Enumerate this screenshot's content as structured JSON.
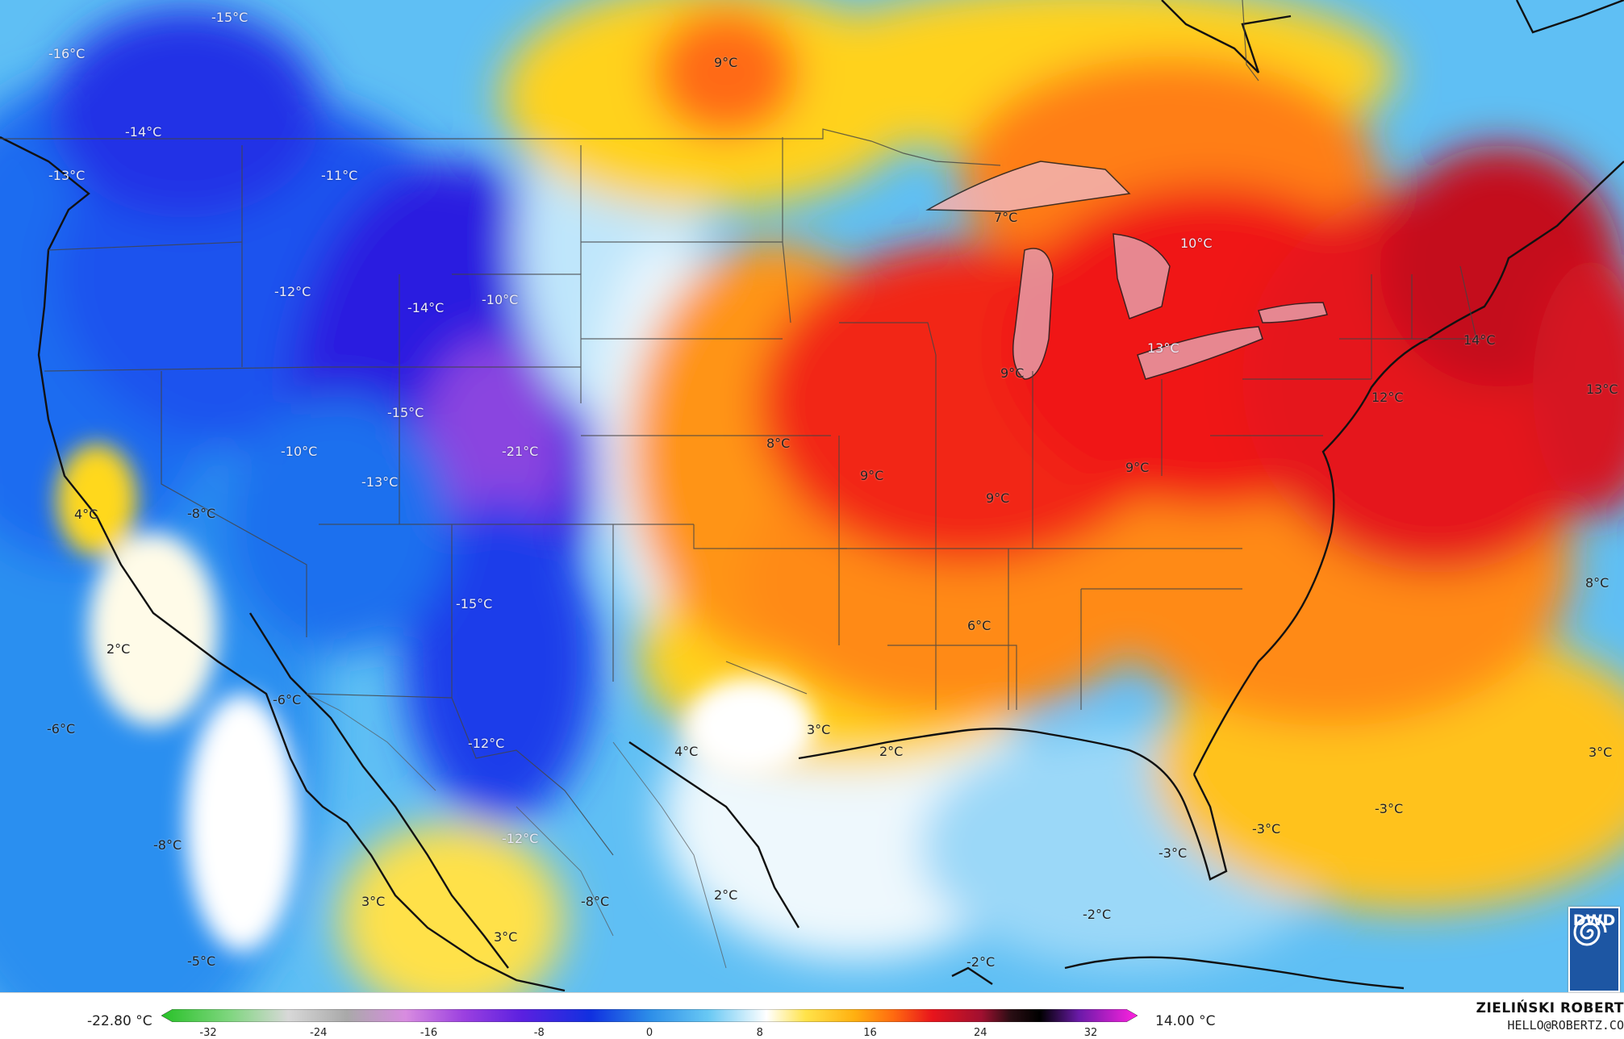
{
  "map": {
    "region": "Contiguous United States, northern Mexico, southern Canada",
    "colors": {
      "ocean_base": "#5fbff4",
      "freezing": "#ffffff",
      "warm_yellow": "#ffd21a",
      "warm_orange": "#ff8c1a",
      "hot_red": "#f01818",
      "very_hot": "#b0101e",
      "cold_blue": "#1660f0",
      "very_cold": "#3a10d8",
      "extreme_cold": "#7a38dd",
      "land_borders": "#111111",
      "lakes": "#e69ba6"
    },
    "city_labels": [
      {
        "id": "seattle-north",
        "text": "-15°C"
      },
      {
        "id": "vancouver",
        "text": "-16°C"
      },
      {
        "id": "seattle",
        "text": "-14°C"
      },
      {
        "id": "olympia",
        "text": "-13°C"
      },
      {
        "id": "montana-west",
        "text": "-11°C"
      },
      {
        "id": "regina",
        "text": "9°C"
      },
      {
        "id": "idaho",
        "text": "-12°C"
      },
      {
        "id": "wyoming",
        "text": "-14°C"
      },
      {
        "id": "wyoming-east",
        "text": "-10°C"
      },
      {
        "id": "utah-north",
        "text": "-15°C"
      },
      {
        "id": "nevada",
        "text": "-10°C"
      },
      {
        "id": "colorado",
        "text": "-21°C"
      },
      {
        "id": "utah-south",
        "text": "-13°C"
      },
      {
        "id": "nevada-west",
        "text": "-8°C"
      },
      {
        "id": "sacramento",
        "text": "4°C"
      },
      {
        "id": "san-diego",
        "text": "2°C"
      },
      {
        "id": "baja",
        "text": "-6°C"
      },
      {
        "id": "pacific-west",
        "text": "-6°C"
      },
      {
        "id": "new-mexico",
        "text": "-15°C"
      },
      {
        "id": "chihuahua",
        "text": "-12°C"
      },
      {
        "id": "sonora",
        "text": "-12°C"
      },
      {
        "id": "pacific-south",
        "text": "-8°C"
      },
      {
        "id": "baja-sur",
        "text": "3°C"
      },
      {
        "id": "sinaloa",
        "text": "3°C"
      },
      {
        "id": "durango",
        "text": "-8°C"
      },
      {
        "id": "pacific-far",
        "text": "-5°C"
      },
      {
        "id": "kansas",
        "text": "8°C"
      },
      {
        "id": "missouri",
        "text": "9°C"
      },
      {
        "id": "minnesota",
        "text": "7°C"
      },
      {
        "id": "ontario",
        "text": "10°C"
      },
      {
        "id": "chicago",
        "text": "9°C"
      },
      {
        "id": "ohio-lake",
        "text": "13°C"
      },
      {
        "id": "maine",
        "text": "14°C"
      },
      {
        "id": "new-york",
        "text": "12°C"
      },
      {
        "id": "atlantic-east",
        "text": "13°C"
      },
      {
        "id": "kentucky",
        "text": "9°C"
      },
      {
        "id": "tennessee",
        "text": "9°C"
      },
      {
        "id": "mississippi",
        "text": "6°C"
      },
      {
        "id": "atlantic-se",
        "text": "8°C"
      },
      {
        "id": "houston",
        "text": "3°C"
      },
      {
        "id": "louisiana",
        "text": "2°C"
      },
      {
        "id": "texas-south",
        "text": "4°C"
      },
      {
        "id": "tamaulipas",
        "text": "2°C"
      },
      {
        "id": "florida",
        "text": "-3°C"
      },
      {
        "id": "bahamas",
        "text": "-3°C"
      },
      {
        "id": "atlantic-caribbean",
        "text": "-3°C"
      },
      {
        "id": "atlantic-far",
        "text": "3°C"
      },
      {
        "id": "cuba-north",
        "text": "-2°C"
      },
      {
        "id": "gulf-south",
        "text": "-2°C"
      }
    ]
  },
  "legend": {
    "min_label": "-22.80 °C",
    "max_label": "14.00 °C",
    "ticks": [
      "-32",
      "-24",
      "-16",
      "-8",
      "0",
      "8",
      "16",
      "24",
      "32"
    ],
    "scale_min": -32,
    "scale_max": 32
  },
  "credit": {
    "name": "ZIELIŃSKI ROBERT",
    "email": "HELLO@ROBERTZ.CO"
  },
  "logo": {
    "text": "DWD"
  }
}
